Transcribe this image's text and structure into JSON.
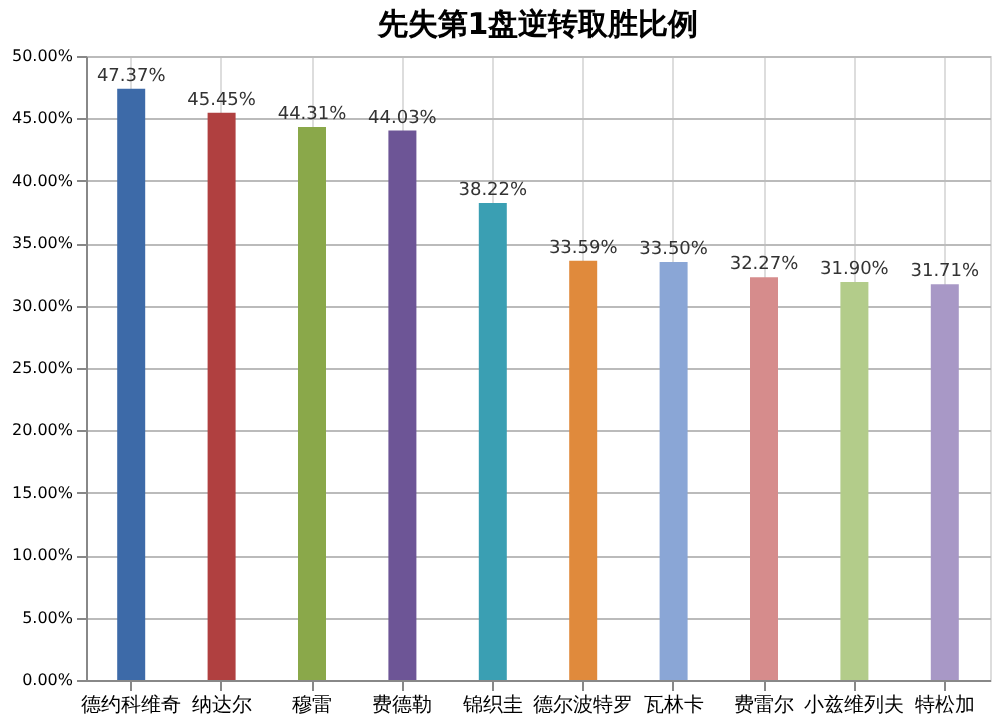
{
  "chart_data": {
    "type": "bar",
    "title": "先失第1盘逆转取胜比例",
    "categories": [
      "德约科维奇",
      "纳达尔",
      "穆雷",
      "费德勒",
      "锦织圭",
      "德尔波特罗",
      "瓦林卡",
      "费雷尔",
      "小兹维列夫",
      "特松加"
    ],
    "values": [
      47.37,
      45.45,
      44.31,
      44.03,
      38.22,
      33.59,
      33.5,
      32.27,
      31.9,
      31.71
    ],
    "value_labels": [
      "47.37%",
      "45.45%",
      "44.31%",
      "44.03%",
      "38.22%",
      "33.59%",
      "33.50%",
      "32.27%",
      "31.90%",
      "31.71%"
    ],
    "colors": [
      "#3d6aa8",
      "#b04040",
      "#8aa84a",
      "#6d5596",
      "#3a9fb3",
      "#e08a3c",
      "#8aa6d6",
      "#d68c8c",
      "#b3cc8a",
      "#a898c6"
    ],
    "ylim": [
      0,
      50
    ],
    "yticks": [
      {
        "value": 0,
        "label": "0.00%"
      },
      {
        "value": 5,
        "label": "5.00%"
      },
      {
        "value": 10,
        "label": "10.00%"
      },
      {
        "value": 15,
        "label": "15.00%"
      },
      {
        "value": 20,
        "label": "20.00%"
      },
      {
        "value": 25,
        "label": "25.00%"
      },
      {
        "value": 30,
        "label": "30.00%"
      },
      {
        "value": 35,
        "label": "35.00%"
      },
      {
        "value": 40,
        "label": "40.00%"
      },
      {
        "value": 45,
        "label": "45.00%"
      },
      {
        "value": 50,
        "label": "50.00%"
      }
    ],
    "grid": true
  }
}
